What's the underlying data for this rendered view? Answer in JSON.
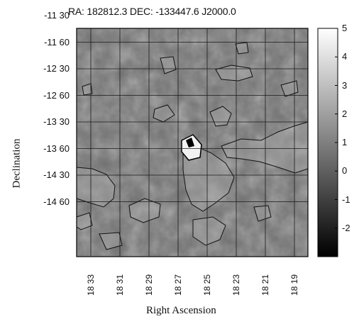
{
  "chart_data": {
    "type": "heatmap",
    "title": "RA: 182812.3 DEC: -133447.6 J2000.0",
    "xlabel": "Right Ascension",
    "ylabel": "Declination",
    "x_ticks": [
      "18 33",
      "18 31",
      "18 29",
      "18 27",
      "18 25",
      "18 23",
      "18 21",
      "18 19"
    ],
    "y_ticks": [
      "-11 30",
      "-11 60",
      "-12 30",
      "-12 60",
      "-13 30",
      "-13 60",
      "-14 30",
      "-14 60"
    ],
    "colorbar": {
      "range": [
        -3,
        5
      ],
      "ticks": [
        "5",
        "4",
        "3",
        "2",
        "1",
        "0",
        "-1",
        "-2"
      ],
      "colormap": "grayscale"
    },
    "grid": true,
    "contours": true
  }
}
